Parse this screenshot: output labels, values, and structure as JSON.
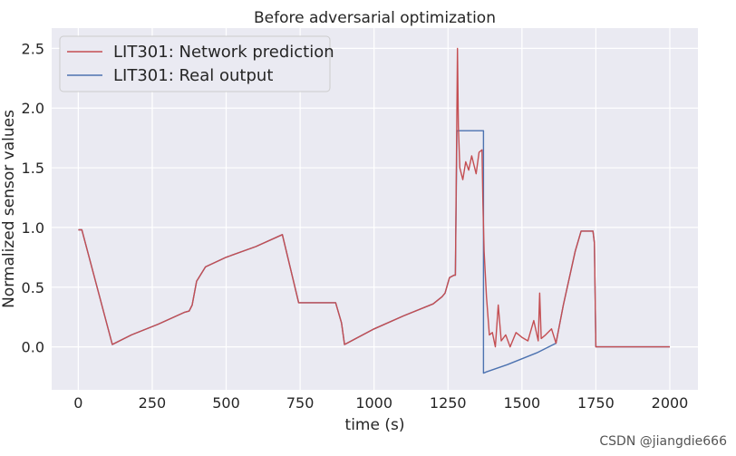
{
  "chart_data": {
    "type": "line",
    "title": "Before adversarial optimization",
    "xlabel": "time (s)",
    "ylabel": "Normalized sensor values",
    "xlim": [
      -90,
      2095
    ],
    "ylim": [
      -0.36,
      2.67
    ],
    "xticks": [
      0,
      250,
      500,
      750,
      1000,
      1250,
      1500,
      1750,
      2000
    ],
    "yticks": [
      0.0,
      0.5,
      1.0,
      1.5,
      2.0,
      2.5
    ],
    "xtick_labels": [
      "0",
      "250",
      "500",
      "750",
      "1000",
      "1250",
      "1500",
      "1750",
      "2000"
    ],
    "ytick_labels": [
      "0.0",
      "0.5",
      "1.0",
      "1.5",
      "2.0",
      "2.5"
    ],
    "grid": true,
    "legend_position": "top-left",
    "series": [
      {
        "name": "LIT301: Network prediction",
        "color": "#c44e52",
        "x": [
          0,
          12,
          115,
          180,
          270,
          360,
          375,
          385,
          400,
          430,
          500,
          600,
          690,
          745,
          770,
          850,
          870,
          890,
          900,
          1000,
          1100,
          1200,
          1230,
          1240,
          1255,
          1270,
          1275,
          1282,
          1285,
          1290,
          1300,
          1310,
          1320,
          1330,
          1345,
          1355,
          1365,
          1368,
          1372,
          1380,
          1390,
          1400,
          1410,
          1420,
          1430,
          1445,
          1460,
          1480,
          1500,
          1520,
          1540,
          1555,
          1560,
          1565,
          1580,
          1600,
          1615,
          1640,
          1680,
          1700,
          1720,
          1740,
          1745,
          1750,
          1800,
          1900,
          2000
        ],
        "y": [
          0.98,
          0.98,
          0.02,
          0.1,
          0.19,
          0.29,
          0.3,
          0.35,
          0.55,
          0.67,
          0.75,
          0.84,
          0.94,
          0.37,
          0.37,
          0.37,
          0.37,
          0.2,
          0.02,
          0.15,
          0.26,
          0.36,
          0.42,
          0.45,
          0.58,
          0.6,
          0.6,
          2.5,
          1.85,
          1.5,
          1.4,
          1.55,
          1.48,
          1.6,
          1.45,
          1.63,
          1.65,
          1.2,
          0.8,
          0.42,
          0.1,
          0.12,
          0.0,
          0.35,
          0.05,
          0.1,
          0.0,
          0.12,
          0.08,
          0.05,
          0.22,
          0.05,
          0.45,
          0.07,
          0.1,
          0.15,
          0.03,
          0.35,
          0.8,
          0.97,
          0.97,
          0.97,
          0.87,
          0.0,
          0.0,
          0.0,
          0.0
        ]
      },
      {
        "name": "LIT301: Real output",
        "color": "#4c72b0",
        "x": [
          0,
          12,
          115,
          180,
          270,
          360,
          375,
          385,
          400,
          430,
          500,
          600,
          690,
          745,
          770,
          850,
          870,
          890,
          900,
          1000,
          1100,
          1200,
          1230,
          1240,
          1255,
          1270,
          1275,
          1280,
          1370,
          1370,
          1380,
          1450,
          1550,
          1615,
          1640,
          1680,
          1700,
          1720,
          1740,
          1745,
          1750,
          1800,
          1900,
          2000
        ],
        "y": [
          0.98,
          0.98,
          0.02,
          0.1,
          0.19,
          0.29,
          0.3,
          0.35,
          0.55,
          0.67,
          0.75,
          0.84,
          0.94,
          0.37,
          0.37,
          0.37,
          0.37,
          0.2,
          0.02,
          0.15,
          0.26,
          0.36,
          0.42,
          0.45,
          0.58,
          0.6,
          0.6,
          1.81,
          1.81,
          -0.22,
          -0.21,
          -0.15,
          -0.05,
          0.03,
          0.35,
          0.8,
          0.97,
          0.97,
          0.97,
          0.87,
          0.0,
          0.0,
          0.0,
          0.0
        ]
      }
    ]
  },
  "watermark": "CSDN @jiangdie666"
}
